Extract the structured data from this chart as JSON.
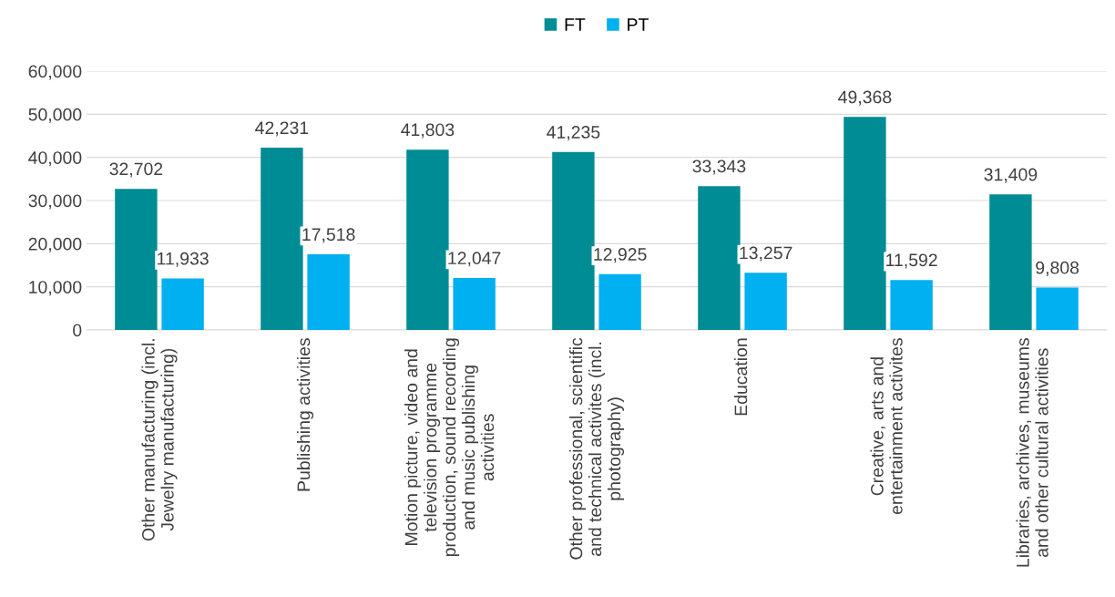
{
  "chart_data": {
    "type": "bar",
    "categories": [
      "Other manufacturing (incl.\nJewelry manufacturing)",
      "Publishing activities",
      "Motion picture, video and\ntelevision programme\nproduction, sound recording\nand music publishing\nactivities",
      "Other professional, scientific\nand technical activites (incl.\nphotography)",
      "Education",
      "Creative, arts and\nentertainment activites",
      "Libraries, archives, museums\nand other cultural activities"
    ],
    "series": [
      {
        "name": "FT",
        "color": "#008C95",
        "values": [
          32702,
          42231,
          41803,
          41235,
          33343,
          49368,
          31409
        ],
        "value_labels": [
          "32,702",
          "42,231",
          "41,803",
          "41,235",
          "33,343",
          "49,368",
          "31,409"
        ]
      },
      {
        "name": "PT",
        "color": "#00B0F0",
        "values": [
          11933,
          17518,
          12047,
          12925,
          13257,
          11592,
          9808
        ],
        "value_labels": [
          "11,933",
          "17,518",
          "12,047",
          "12,925",
          "13,257",
          "11,592",
          "9,808"
        ]
      }
    ],
    "ylim": [
      0,
      60000
    ],
    "yticks": [
      {
        "value": 0,
        "label": "0"
      },
      {
        "value": 10000,
        "label": "10,000"
      },
      {
        "value": 20000,
        "label": "20,000"
      },
      {
        "value": 30000,
        "label": "30,000"
      },
      {
        "value": 40000,
        "label": "40,000"
      },
      {
        "value": 50000,
        "label": "50,000"
      },
      {
        "value": 60000,
        "label": "60,000"
      }
    ],
    "grid": "y",
    "legend": "top"
  }
}
